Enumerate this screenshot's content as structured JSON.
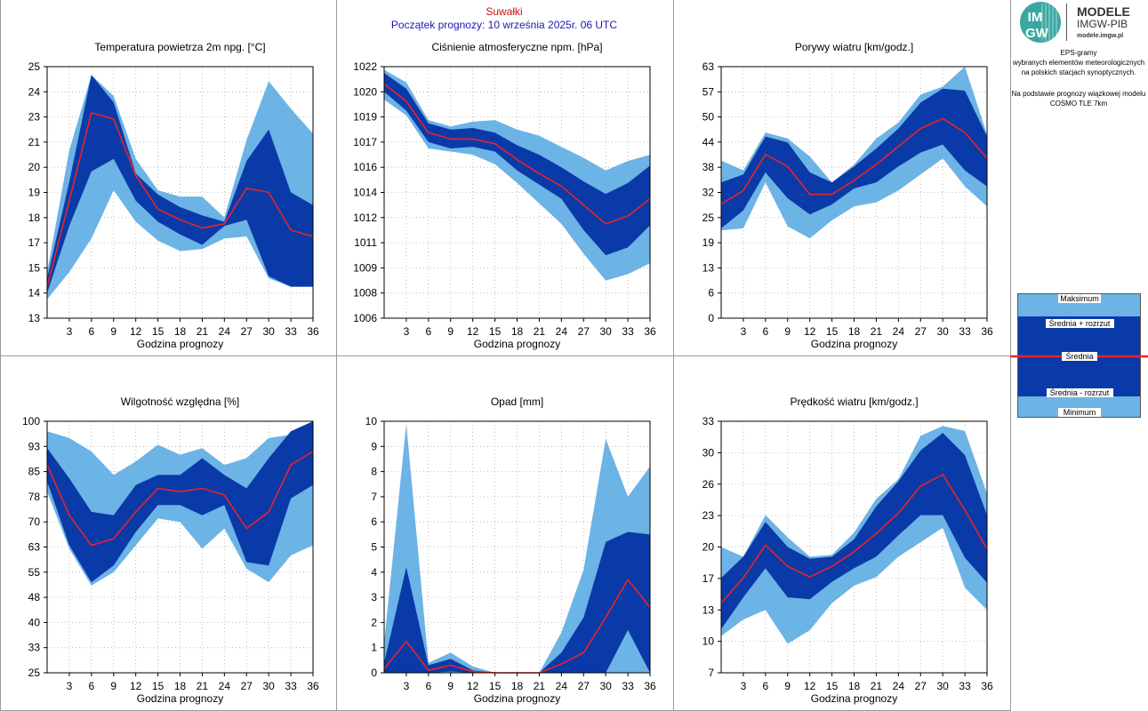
{
  "header": {
    "station": "Suwałki",
    "forecast_start": "Początek prognozy: 10 września 2025r. 06 UTC"
  },
  "logo": {
    "mark_top": "IM",
    "mark_bottom": "GW",
    "title": "MODELE",
    "subtitle": "IMGW-PIB",
    "url": "modele.imgw.pl"
  },
  "sidebar": {
    "line1": "EPS-gramy",
    "line2": "wybranych elementów meteorologicznych",
    "line3": "na polskich stacjach  synoptycznych.",
    "line4": "Na podstawie prognozy wiązkowej modelu",
    "line5": "COSMO TLE 7km"
  },
  "legend": {
    "max": "Maksimum",
    "mean_plus": "Średnia + rozrzut",
    "mean": "Średnia",
    "mean_minus": "Średnia - rozrzut",
    "min": "Minimum"
  },
  "colors": {
    "outer_band": "#6cb3e6",
    "inner_band": "#0a3aa8",
    "mean_line": "#e8232a",
    "grid": "#b0b0b0"
  },
  "chart_data": [
    {
      "type": "area",
      "title": "Temperatura powietrza 2m npg. [°C]",
      "xlabel": "Godzina prognozy",
      "x": [
        0,
        3,
        6,
        9,
        12,
        15,
        18,
        21,
        24,
        27,
        30,
        33,
        36
      ],
      "xticks": [
        "3",
        "6",
        "9",
        "12",
        "15",
        "18",
        "21",
        "24",
        "27",
        "30",
        "33",
        "36"
      ],
      "ylim": [
        13,
        25
      ],
      "yticks": [
        "13",
        "14",
        "15",
        "17",
        "18",
        "19",
        "20",
        "21",
        "23",
        "24",
        "25"
      ],
      "max": [
        15.2,
        21.0,
        24.6,
        23.6,
        20.6,
        19.1,
        18.8,
        18.8,
        17.8,
        21.5,
        24.3,
        23.0,
        21.8
      ],
      "mean_plus": [
        14.9,
        19.5,
        24.6,
        23.3,
        19.9,
        18.9,
        18.3,
        17.9,
        17.6,
        20.5,
        22.0,
        19.0,
        18.4
      ],
      "mean": [
        14.5,
        18.6,
        22.8,
        22.5,
        19.8,
        18.2,
        17.7,
        17.3,
        17.5,
        19.2,
        19.0,
        17.2,
        16.9
      ],
      "mean_minus": [
        14.2,
        17.4,
        20.0,
        20.6,
        18.6,
        17.6,
        17.0,
        16.5,
        17.4,
        17.7,
        15.0,
        14.5,
        14.5
      ],
      "min": [
        13.9,
        15.2,
        16.8,
        19.1,
        17.6,
        16.7,
        16.2,
        16.3,
        16.8,
        16.9,
        14.9,
        14.5,
        14.5
      ]
    },
    {
      "type": "area",
      "title": "Ciśnienie atmosferyczne npm. [hPa]",
      "xlabel": "Godzina prognozy",
      "x": [
        0,
        3,
        6,
        9,
        12,
        15,
        18,
        21,
        24,
        27,
        30,
        33,
        36
      ],
      "xticks": [
        "3",
        "6",
        "9",
        "12",
        "15",
        "18",
        "21",
        "24",
        "27",
        "30",
        "33",
        "36"
      ],
      "ylim": [
        1006,
        1022
      ],
      "yticks": [
        "1006",
        "1008",
        "1009",
        "1011",
        "1012",
        "1014",
        "1016",
        "1017",
        "1019",
        "1020",
        "1022"
      ],
      "max": [
        1021.8,
        1021.0,
        1018.6,
        1018.2,
        1018.5,
        1018.6,
        1018.0,
        1017.6,
        1016.9,
        1016.2,
        1015.4,
        1016.0,
        1016.4
      ],
      "mean_plus": [
        1021.6,
        1020.6,
        1018.4,
        1018.0,
        1018.1,
        1017.8,
        1017.0,
        1016.4,
        1015.6,
        1014.7,
        1013.9,
        1014.6,
        1015.7
      ],
      "mean": [
        1020.9,
        1019.8,
        1017.8,
        1017.4,
        1017.4,
        1017.1,
        1016.1,
        1015.2,
        1014.4,
        1013.2,
        1012.0,
        1012.5,
        1013.6
      ],
      "mean_minus": [
        1020.4,
        1019.2,
        1017.2,
        1016.8,
        1016.9,
        1016.6,
        1015.4,
        1014.5,
        1013.6,
        1011.6,
        1010.0,
        1010.5,
        1011.9
      ],
      "min": [
        1019.9,
        1018.9,
        1016.8,
        1016.6,
        1016.4,
        1015.8,
        1014.6,
        1013.3,
        1012.0,
        1010.1,
        1008.4,
        1008.8,
        1009.5
      ]
    },
    {
      "type": "area",
      "title": "Porywy wiatru [km/godz.]",
      "xlabel": "Godzina prognozy",
      "x": [
        0,
        3,
        6,
        9,
        12,
        15,
        18,
        21,
        24,
        27,
        30,
        33,
        36
      ],
      "xticks": [
        "3",
        "6",
        "9",
        "12",
        "15",
        "18",
        "21",
        "24",
        "27",
        "30",
        "33",
        "36"
      ],
      "ylim": [
        0,
        63
      ],
      "yticks": [
        "0",
        "6",
        "13",
        "19",
        "25",
        "32",
        "38",
        "44",
        "50",
        "57",
        "63"
      ],
      "max": [
        39.5,
        37.0,
        46.5,
        45.0,
        40.5,
        34.0,
        38.5,
        45.0,
        49.0,
        56.0,
        58.0,
        63.0,
        46.0
      ],
      "mean_plus": [
        34.0,
        36.0,
        45.5,
        44.0,
        36.5,
        34.0,
        38.0,
        42.5,
        47.5,
        54.0,
        57.5,
        57.0,
        45.5
      ],
      "mean": [
        28.5,
        32.0,
        41.0,
        38.0,
        31.0,
        31.0,
        34.5,
        38.5,
        43.0,
        47.5,
        50.0,
        46.5,
        40.0
      ],
      "mean_minus": [
        22.5,
        27.0,
        36.5,
        30.0,
        26.0,
        28.5,
        32.5,
        34.0,
        38.0,
        41.5,
        43.5,
        37.0,
        33.0
      ],
      "min": [
        22.0,
        22.5,
        34.0,
        23.0,
        20.0,
        24.5,
        28.0,
        29.0,
        32.0,
        36.0,
        40.0,
        33.0,
        28.0
      ]
    },
    {
      "type": "area",
      "title": "Wilgotność względna [%]",
      "xlabel": "Godzina prognozy",
      "x": [
        0,
        3,
        6,
        9,
        12,
        15,
        18,
        21,
        24,
        27,
        30,
        33,
        36
      ],
      "xticks": [
        "3",
        "6",
        "9",
        "12",
        "15",
        "18",
        "21",
        "24",
        "27",
        "30",
        "33",
        "36"
      ],
      "ylim": [
        25,
        100
      ],
      "yticks": [
        "25",
        "33",
        "40",
        "48",
        "55",
        "63",
        "70",
        "78",
        "85",
        "93",
        "100"
      ],
      "max": [
        97,
        95,
        91,
        84,
        88,
        93,
        90,
        92,
        87,
        89,
        95,
        96,
        100
      ],
      "mean_plus": [
        92,
        83,
        73,
        72,
        81,
        84,
        84,
        89,
        84,
        80,
        89,
        97,
        100
      ],
      "mean": [
        87,
        72,
        63,
        65,
        73,
        80,
        79,
        80,
        78,
        68,
        73,
        87,
        91
      ],
      "mean_minus": [
        82,
        63,
        52,
        57,
        67,
        75,
        75,
        72,
        75,
        58,
        57,
        77,
        81
      ],
      "min": [
        79,
        62,
        51,
        55,
        63,
        71,
        70,
        62,
        68,
        56,
        52,
        60,
        63
      ]
    },
    {
      "type": "area",
      "title": "Opad [mm]",
      "xlabel": "Godzina prognozy",
      "x": [
        0,
        3,
        6,
        9,
        12,
        15,
        18,
        21,
        24,
        27,
        30,
        33,
        36
      ],
      "xticks": [
        "3",
        "6",
        "9",
        "12",
        "15",
        "18",
        "21",
        "24",
        "27",
        "30",
        "33",
        "36"
      ],
      "ylim": [
        0,
        10
      ],
      "yticks": [
        "0",
        "1",
        "2",
        "3",
        "4",
        "5",
        "6",
        "7",
        "8",
        "9",
        "10"
      ],
      "max": [
        1.2,
        9.9,
        0.4,
        0.8,
        0.25,
        0.0,
        0.0,
        0.0,
        1.6,
        4.1,
        9.3,
        7.0,
        8.2
      ],
      "mean_plus": [
        0.4,
        4.2,
        0.3,
        0.55,
        0.1,
        0.0,
        0.0,
        0.0,
        0.8,
        2.2,
        5.2,
        5.6,
        5.5
      ],
      "mean": [
        0.15,
        1.25,
        0.1,
        0.3,
        0.05,
        0.0,
        0.0,
        0.0,
        0.35,
        0.8,
        2.2,
        3.7,
        2.6
      ],
      "mean_minus": [
        0.0,
        0.0,
        0.0,
        0.05,
        0.0,
        0.0,
        0.0,
        0.0,
        0.0,
        0.0,
        0.0,
        1.7,
        0.0
      ],
      "min": [
        0.0,
        0.0,
        0.0,
        0.0,
        0.0,
        0.0,
        0.0,
        0.0,
        0.0,
        0.0,
        0.0,
        0.0,
        0.0
      ]
    },
    {
      "type": "area",
      "title": "Prędkość wiatru [km/godz.]",
      "xlabel": "Godzina prognozy",
      "x": [
        0,
        3,
        6,
        9,
        12,
        15,
        18,
        21,
        24,
        27,
        30,
        33,
        36
      ],
      "xticks": [
        "3",
        "6",
        "9",
        "12",
        "15",
        "18",
        "21",
        "24",
        "27",
        "30",
        "33",
        "36"
      ],
      "ylim": [
        7,
        33
      ],
      "yticks": [
        "7",
        "10",
        "13",
        "17",
        "20",
        "23",
        "26",
        "30",
        "33"
      ],
      "max": [
        20.0,
        19.0,
        23.3,
        21.0,
        19.0,
        19.2,
        21.5,
        25.0,
        27.0,
        31.5,
        32.5,
        32.0,
        25.5
      ],
      "mean_plus": [
        16.8,
        19.0,
        22.6,
        20.0,
        18.8,
        19.0,
        20.8,
        24.2,
        26.8,
        30.0,
        31.8,
        29.5,
        23.3
      ],
      "mean": [
        14.2,
        16.8,
        20.2,
        18.0,
        16.9,
        18.0,
        19.5,
        21.4,
        23.5,
        26.3,
        27.5,
        23.8,
        19.8
      ],
      "mean_minus": [
        11.5,
        14.8,
        17.8,
        14.8,
        14.6,
        16.4,
        17.8,
        19.0,
        21.2,
        23.3,
        23.3,
        18.9,
        16.3
      ],
      "min": [
        10.8,
        12.5,
        13.5,
        10.0,
        11.4,
        14.2,
        16.0,
        16.9,
        19.0,
        20.5,
        22.0,
        15.8,
        13.5
      ]
    }
  ]
}
